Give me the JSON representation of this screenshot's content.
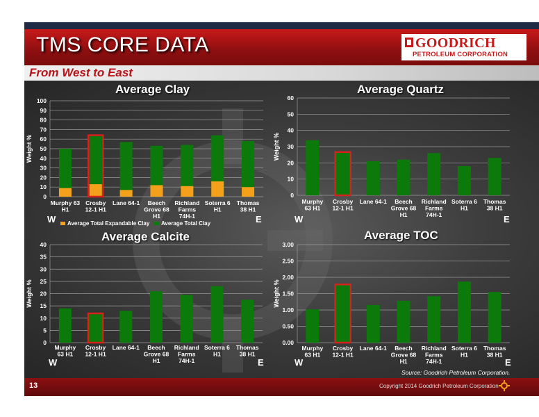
{
  "slide": {
    "title": "TMS CORE DATA",
    "subtitle": "From West to East",
    "logo_name": "GOODRICH",
    "logo_sub": "PETROLEUM CORPORATION",
    "page_number": "13",
    "copyright": "Copyright 2014 Goodrich Petroleum Corporation",
    "source": "Source: Goodrich Petroleum Corporation.",
    "west": "W",
    "east": "E",
    "colors": {
      "title_red": "#c8191a",
      "bar_green": "#0b7a0b",
      "bar_orange": "#f5a01a",
      "highlight": "#d6211c"
    }
  },
  "chart_data": [
    {
      "type": "bar",
      "stacked_overlay": true,
      "title": "Average Clay",
      "ylabel": "Weight %",
      "ylim": [
        0,
        100
      ],
      "ticks": [
        "0",
        "10",
        "20",
        "30",
        "40",
        "50",
        "60",
        "70",
        "80",
        "90",
        "100"
      ],
      "categories": [
        [
          "Murphy 63",
          "H1"
        ],
        [
          "Crosby",
          "12-1 H1"
        ],
        [
          "Lane 64-1",
          ""
        ],
        [
          "Beech",
          "Grove 68",
          "H1"
        ],
        [
          "Richland",
          "Farms",
          "74H-1"
        ],
        [
          "Soterra 6",
          "H1"
        ],
        [
          "Thomas",
          "38 H1"
        ]
      ],
      "highlight_index": 1,
      "series": [
        {
          "name": "Average Total Expandable Clay",
          "color": "#f5a01a",
          "values": [
            9,
            13,
            7,
            12,
            11,
            16,
            10
          ]
        },
        {
          "name": "Average Total Clay",
          "color": "#0b7a0b",
          "values": [
            50,
            63,
            57,
            53,
            54,
            64,
            58
          ]
        }
      ]
    },
    {
      "type": "bar",
      "title": "Average Quartz",
      "ylabel": "Weight %",
      "ylim": [
        0,
        60
      ],
      "ticks": [
        "0",
        "10",
        "20",
        "30",
        "40",
        "50",
        "60"
      ],
      "categories": [
        [
          "Murphy",
          "63 H1"
        ],
        [
          "Crosby",
          "12-1 H1"
        ],
        [
          "Lane 64-1",
          ""
        ],
        [
          "Beech",
          "Grove 68",
          "H1"
        ],
        [
          "Richland",
          "Farms",
          "74H-1"
        ],
        [
          "Soterra 6",
          "H1"
        ],
        [
          "Thomas",
          "38 H1"
        ]
      ],
      "highlight_index": 1,
      "series": [
        {
          "values": [
            34,
            26,
            21,
            22,
            26,
            18,
            23
          ]
        }
      ]
    },
    {
      "type": "bar",
      "title": "Average Calcite",
      "ylabel": "Weight %",
      "ylim": [
        0,
        40
      ],
      "ticks": [
        "0",
        "5",
        "10",
        "15",
        "20",
        "25",
        "30",
        "35",
        "40"
      ],
      "categories": [
        [
          "Murphy",
          "63 H1"
        ],
        [
          "Crosby",
          "12-1 H1"
        ],
        [
          "Lane 64-1",
          ""
        ],
        [
          "Beech",
          "Grove 68",
          "H1"
        ],
        [
          "Richland",
          "Farms",
          "74H-1"
        ],
        [
          "Soterra 6",
          "H1"
        ],
        [
          "Thomas",
          "38 H1"
        ]
      ],
      "highlight_index": 1,
      "series": [
        {
          "values": [
            14,
            11.5,
            13,
            21,
            19.5,
            23,
            17.5
          ]
        }
      ]
    },
    {
      "type": "bar",
      "title": "Average TOC",
      "ylabel": "Weight %",
      "ylim": [
        0,
        3
      ],
      "ticks": [
        "0.00",
        "0.50",
        "1.00",
        "1.50",
        "2.00",
        "2.50",
        "3.00"
      ],
      "categories": [
        [
          "Murphy",
          "63 H1"
        ],
        [
          "Crosby",
          "12-1 H1"
        ],
        [
          "Lane 64-1",
          ""
        ],
        [
          "Beech",
          "Grove 68",
          "H1"
        ],
        [
          "Richland",
          "Farms",
          "74H-1"
        ],
        [
          "Soterra 6",
          "H1"
        ],
        [
          "Thomas",
          "38 H1"
        ]
      ],
      "highlight_index": 1,
      "series": [
        {
          "values": [
            1.02,
            1.75,
            1.15,
            1.28,
            1.42,
            1.87,
            1.55
          ]
        }
      ]
    }
  ]
}
